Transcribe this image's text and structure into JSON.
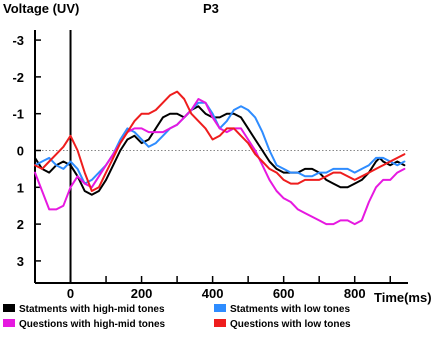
{
  "chart_data": {
    "type": "line",
    "title": "P3",
    "ylabel": "Voltage (UV)",
    "xlabel": "Time(ms)",
    "y_inverted": true,
    "xlim": [
      -100,
      950
    ],
    "ylim": [
      -3.6,
      3.6
    ],
    "x_ticks": [
      0,
      200,
      400,
      600,
      800
    ],
    "y_ticks": [
      -3,
      -2,
      -1,
      0,
      1,
      2,
      3
    ],
    "x_ticks_every_100_to": 900,
    "zero_line": {
      "axis": "y",
      "value": 0,
      "style": "dotted"
    },
    "stimulus_line_x": 0,
    "legend_position": "bottom",
    "series": [
      {
        "name": "Statments with high-mid tones",
        "color": "#000000",
        "points": [
          [
            -100,
            0.2
          ],
          [
            -80,
            0.5
          ],
          [
            -60,
            0.6
          ],
          [
            -40,
            0.4
          ],
          [
            -20,
            0.3
          ],
          [
            0,
            0.4
          ],
          [
            20,
            0.7
          ],
          [
            40,
            1.1
          ],
          [
            60,
            1.2
          ],
          [
            80,
            1.1
          ],
          [
            100,
            0.8
          ],
          [
            120,
            0.4
          ],
          [
            140,
            0
          ],
          [
            160,
            -0.3
          ],
          [
            180,
            -0.4
          ],
          [
            200,
            -0.2
          ],
          [
            220,
            -0.3
          ],
          [
            240,
            -0.6
          ],
          [
            260,
            -0.9
          ],
          [
            280,
            -1.0
          ],
          [
            300,
            -1.0
          ],
          [
            320,
            -0.9
          ],
          [
            340,
            -1.1
          ],
          [
            360,
            -1.2
          ],
          [
            380,
            -1.0
          ],
          [
            400,
            -0.9
          ],
          [
            420,
            -0.9
          ],
          [
            440,
            -1.0
          ],
          [
            460,
            -1.0
          ],
          [
            480,
            -0.9
          ],
          [
            500,
            -0.6
          ],
          [
            520,
            -0.3
          ],
          [
            540,
            0
          ],
          [
            560,
            0.3
          ],
          [
            580,
            0.5
          ],
          [
            600,
            0.6
          ],
          [
            620,
            0.6
          ],
          [
            640,
            0.6
          ],
          [
            660,
            0.5
          ],
          [
            680,
            0.5
          ],
          [
            700,
            0.6
          ],
          [
            720,
            0.8
          ],
          [
            740,
            0.9
          ],
          [
            760,
            1.0
          ],
          [
            780,
            1.0
          ],
          [
            800,
            0.9
          ],
          [
            820,
            0.8
          ],
          [
            840,
            0.6
          ],
          [
            860,
            0.3
          ],
          [
            870,
            0.2
          ],
          [
            880,
            0.3
          ],
          [
            900,
            0.4
          ],
          [
            920,
            0.3
          ],
          [
            940,
            0.4
          ]
        ]
      },
      {
        "name": "Statments with low tones",
        "color": "#2e8cff",
        "points": [
          [
            -100,
            0.4
          ],
          [
            -80,
            0.3
          ],
          [
            -60,
            0.2
          ],
          [
            -40,
            0.4
          ],
          [
            -20,
            0.5
          ],
          [
            0,
            0.3
          ],
          [
            20,
            0.5
          ],
          [
            40,
            0.9
          ],
          [
            60,
            0.8
          ],
          [
            80,
            0.6
          ],
          [
            100,
            0.4
          ],
          [
            120,
            0.1
          ],
          [
            140,
            -0.3
          ],
          [
            160,
            -0.6
          ],
          [
            180,
            -0.5
          ],
          [
            200,
            -0.3
          ],
          [
            220,
            -0.1
          ],
          [
            240,
            -0.2
          ],
          [
            260,
            -0.4
          ],
          [
            280,
            -0.6
          ],
          [
            300,
            -0.7
          ],
          [
            320,
            -0.9
          ],
          [
            340,
            -1.1
          ],
          [
            360,
            -1.3
          ],
          [
            380,
            -1.3
          ],
          [
            400,
            -1.0
          ],
          [
            420,
            -0.6
          ],
          [
            440,
            -0.8
          ],
          [
            460,
            -1.1
          ],
          [
            480,
            -1.2
          ],
          [
            500,
            -1.1
          ],
          [
            520,
            -0.9
          ],
          [
            540,
            -0.5
          ],
          [
            560,
            0
          ],
          [
            580,
            0.4
          ],
          [
            600,
            0.5
          ],
          [
            620,
            0.6
          ],
          [
            640,
            0.6
          ],
          [
            660,
            0.7
          ],
          [
            680,
            0.7
          ],
          [
            700,
            0.6
          ],
          [
            720,
            0.6
          ],
          [
            740,
            0.5
          ],
          [
            760,
            0.5
          ],
          [
            780,
            0.5
          ],
          [
            800,
            0.6
          ],
          [
            820,
            0.5
          ],
          [
            840,
            0.4
          ],
          [
            860,
            0.2
          ],
          [
            880,
            0.2
          ],
          [
            900,
            0.3
          ],
          [
            920,
            0.4
          ],
          [
            940,
            0.3
          ]
        ]
      },
      {
        "name": "Questions with high-mid tones",
        "color": "#e619e0",
        "points": [
          [
            -100,
            0.6
          ],
          [
            -80,
            1.1
          ],
          [
            -60,
            1.6
          ],
          [
            -40,
            1.6
          ],
          [
            -20,
            1.5
          ],
          [
            0,
            1.0
          ],
          [
            20,
            0.7
          ],
          [
            40,
            0.9
          ],
          [
            60,
            1.0
          ],
          [
            80,
            0.7
          ],
          [
            100,
            0.4
          ],
          [
            120,
            0.1
          ],
          [
            140,
            -0.2
          ],
          [
            160,
            -0.5
          ],
          [
            180,
            -0.6
          ],
          [
            200,
            -0.6
          ],
          [
            220,
            -0.5
          ],
          [
            240,
            -0.5
          ],
          [
            260,
            -0.5
          ],
          [
            280,
            -0.6
          ],
          [
            300,
            -0.7
          ],
          [
            320,
            -0.9
          ],
          [
            340,
            -1.1
          ],
          [
            360,
            -1.4
          ],
          [
            380,
            -1.3
          ],
          [
            400,
            -0.9
          ],
          [
            420,
            -0.6
          ],
          [
            440,
            -0.5
          ],
          [
            460,
            -0.6
          ],
          [
            480,
            -0.6
          ],
          [
            500,
            -0.3
          ],
          [
            520,
            0
          ],
          [
            540,
            0.4
          ],
          [
            560,
            0.8
          ],
          [
            580,
            1.1
          ],
          [
            600,
            1.3
          ],
          [
            620,
            1.4
          ],
          [
            640,
            1.6
          ],
          [
            660,
            1.7
          ],
          [
            680,
            1.8
          ],
          [
            700,
            1.9
          ],
          [
            720,
            2.0
          ],
          [
            740,
            2.0
          ],
          [
            760,
            1.9
          ],
          [
            780,
            1.9
          ],
          [
            800,
            2.0
          ],
          [
            820,
            1.9
          ],
          [
            840,
            1.4
          ],
          [
            860,
            1.0
          ],
          [
            880,
            0.8
          ],
          [
            900,
            0.8
          ],
          [
            920,
            0.6
          ],
          [
            940,
            0.5
          ]
        ]
      },
      {
        "name": "Questions with low tones",
        "color": "#ee1d1d",
        "points": [
          [
            -100,
            0.4
          ],
          [
            -80,
            0.5
          ],
          [
            -60,
            0.3
          ],
          [
            -40,
            0.1
          ],
          [
            -20,
            -0.1
          ],
          [
            0,
            -0.4
          ],
          [
            20,
            0
          ],
          [
            40,
            0.6
          ],
          [
            60,
            1.1
          ],
          [
            80,
            1.0
          ],
          [
            100,
            0.6
          ],
          [
            120,
            0.2
          ],
          [
            140,
            -0.2
          ],
          [
            160,
            -0.5
          ],
          [
            180,
            -0.8
          ],
          [
            200,
            -1.0
          ],
          [
            220,
            -1.0
          ],
          [
            240,
            -1.1
          ],
          [
            260,
            -1.3
          ],
          [
            280,
            -1.5
          ],
          [
            300,
            -1.6
          ],
          [
            320,
            -1.4
          ],
          [
            340,
            -1.0
          ],
          [
            360,
            -0.8
          ],
          [
            380,
            -0.6
          ],
          [
            400,
            -0.3
          ],
          [
            420,
            -0.4
          ],
          [
            440,
            -0.6
          ],
          [
            460,
            -0.6
          ],
          [
            480,
            -0.4
          ],
          [
            500,
            -0.2
          ],
          [
            520,
            0.1
          ],
          [
            540,
            0.3
          ],
          [
            560,
            0.5
          ],
          [
            580,
            0.6
          ],
          [
            600,
            0.8
          ],
          [
            620,
            0.9
          ],
          [
            640,
            0.9
          ],
          [
            660,
            0.8
          ],
          [
            680,
            0.8
          ],
          [
            700,
            0.8
          ],
          [
            720,
            0.7
          ],
          [
            740,
            0.6
          ],
          [
            760,
            0.6
          ],
          [
            780,
            0.7
          ],
          [
            800,
            0.8
          ],
          [
            820,
            0.7
          ],
          [
            840,
            0.6
          ],
          [
            860,
            0.5
          ],
          [
            880,
            0.4
          ],
          [
            900,
            0.3
          ],
          [
            920,
            0.2
          ],
          [
            940,
            0.1
          ]
        ]
      }
    ]
  }
}
